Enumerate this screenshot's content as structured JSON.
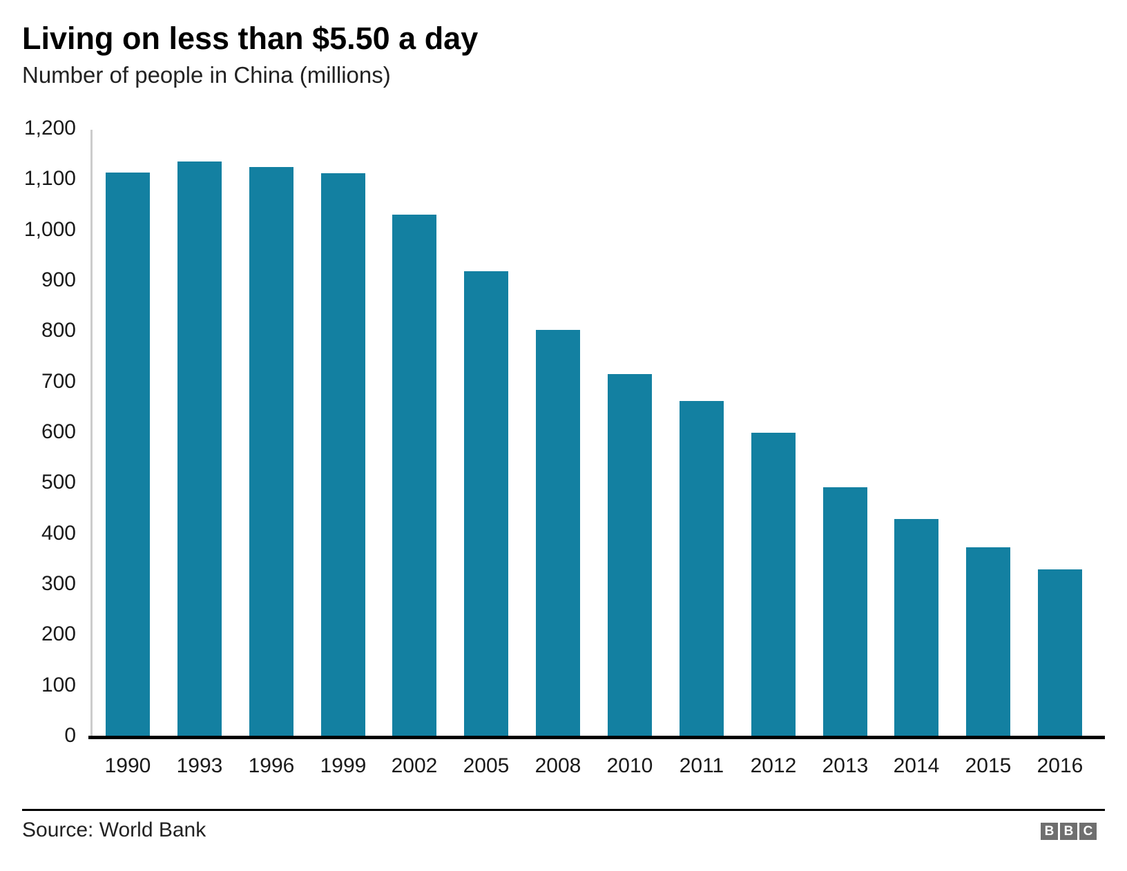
{
  "chart_data": {
    "type": "bar",
    "title": "Living on less than $5.50 a day",
    "subtitle": "Number of people in China (millions)",
    "xlabel": "",
    "ylabel": "Number of people in China (millions)",
    "categories": [
      "1990",
      "1993",
      "1996",
      "1999",
      "2002",
      "2005",
      "2008",
      "2010",
      "2011",
      "2012",
      "2013",
      "2014",
      "2015",
      "2016"
    ],
    "values": [
      1113,
      1135,
      1124,
      1112,
      1030,
      918,
      802,
      715,
      661,
      598,
      491,
      428,
      372,
      328
    ],
    "ylim": [
      0,
      1200
    ],
    "y_ticks": [
      "0",
      "100",
      "200",
      "300",
      "400",
      "500",
      "600",
      "700",
      "800",
      "900",
      "1,000",
      "1,100",
      "1,200"
    ],
    "grid": false,
    "legend": "none",
    "bar_color": "#1380A1",
    "axis_line_color": "#cccccc",
    "baseline_color": "#000000"
  },
  "footer": {
    "source": "Source: World Bank",
    "logo_letters": [
      "B",
      "B",
      "C"
    ],
    "logo_color": "#6f6f6f"
  }
}
